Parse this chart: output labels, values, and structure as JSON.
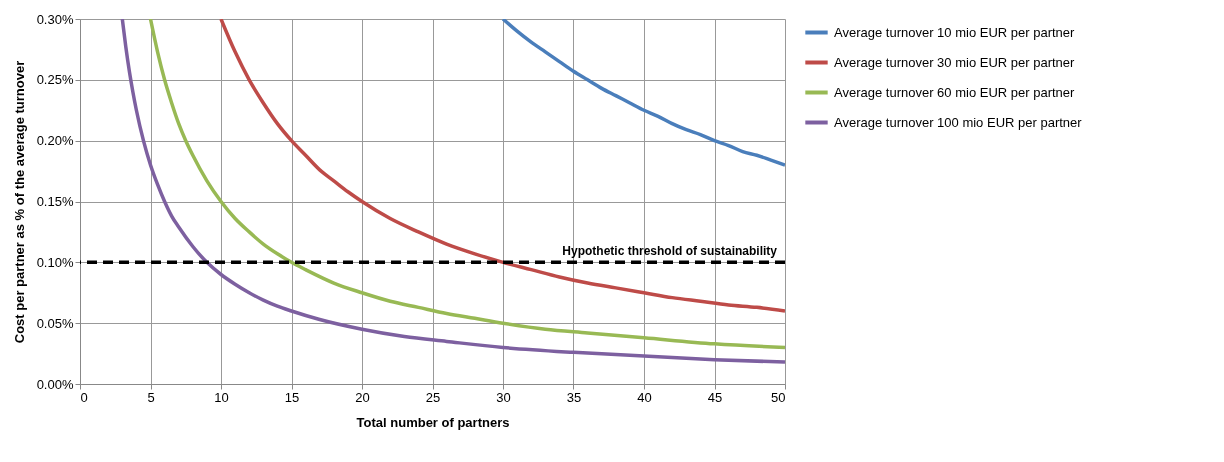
{
  "chart_data": {
    "type": "line",
    "xlabel": "Total number of partners",
    "ylabel": "Cost per partner as % of the average turnover",
    "xlim": [
      0,
      50
    ],
    "xticks": [
      0,
      5,
      10,
      15,
      20,
      25,
      30,
      35,
      40,
      45,
      50
    ],
    "ylim": [
      0,
      0.3
    ],
    "yticks": [
      {
        "value": 0,
        "label": "0.00%"
      },
      {
        "value": 0.05,
        "label": "0.05%"
      },
      {
        "value": 0.1,
        "label": "0.10%"
      },
      {
        "value": 0.15,
        "label": "0.15%"
      },
      {
        "value": 0.2,
        "label": "0.20%"
      },
      {
        "value": 0.25,
        "label": "0.25%"
      },
      {
        "value": 0.3,
        "label": "0.30%"
      }
    ],
    "grid": true,
    "legend": "right",
    "series": [
      {
        "name": "Average turnover 10 mio EUR per partner",
        "color": "#4a7ebb",
        "x": [
          30,
          31,
          32,
          33,
          34,
          35,
          36,
          37,
          38,
          39,
          40,
          41,
          42,
          43,
          44,
          45,
          46,
          47,
          48,
          49,
          50
        ],
        "values": [
          0.3,
          0.29,
          0.281,
          0.273,
          0.265,
          0.257,
          0.25,
          0.243,
          0.237,
          0.231,
          0.225,
          0.22,
          0.214,
          0.209,
          0.205,
          0.2,
          0.196,
          0.191,
          0.188,
          0.184,
          0.18
        ]
      },
      {
        "name": "Average turnover 30 mio EUR per partner",
        "color": "#be4b48",
        "x": [
          10,
          11,
          12,
          13,
          14,
          15,
          16,
          17,
          18,
          19,
          20,
          22,
          24,
          26,
          28,
          30,
          32,
          34,
          36,
          38,
          40,
          42,
          44,
          46,
          48,
          50
        ],
        "values": [
          0.3,
          0.273,
          0.25,
          0.231,
          0.214,
          0.2,
          0.188,
          0.176,
          0.167,
          0.158,
          0.15,
          0.136,
          0.125,
          0.115,
          0.107,
          0.1,
          0.094,
          0.088,
          0.083,
          0.079,
          0.075,
          0.071,
          0.068,
          0.065,
          0.063,
          0.06
        ]
      },
      {
        "name": "Average turnover 60 mio EUR per partner",
        "color": "#98b954",
        "x": [
          5,
          5.5,
          6,
          6.5,
          7,
          7.5,
          8,
          9,
          10,
          11,
          12,
          13,
          14,
          15,
          16,
          18,
          20,
          22,
          24,
          26,
          28,
          30,
          33,
          36,
          40,
          45,
          50
        ],
        "values": [
          0.3,
          0.273,
          0.25,
          0.231,
          0.214,
          0.2,
          0.188,
          0.167,
          0.15,
          0.136,
          0.125,
          0.115,
          0.107,
          0.1,
          0.094,
          0.083,
          0.075,
          0.068,
          0.063,
          0.058,
          0.054,
          0.05,
          0.045,
          0.042,
          0.038,
          0.033,
          0.03
        ]
      },
      {
        "name": "Average turnover 100 mio EUR per partner",
        "color": "#7d60a0",
        "x": [
          3,
          3.25,
          3.5,
          3.75,
          4,
          4.5,
          5,
          5.5,
          6,
          6.5,
          7,
          8,
          9,
          10,
          11,
          12,
          13,
          14,
          15,
          17,
          20,
          23,
          26,
          30,
          35,
          40,
          45,
          50
        ],
        "values": [
          0.3,
          0.277,
          0.257,
          0.24,
          0.225,
          0.2,
          0.18,
          0.164,
          0.15,
          0.138,
          0.129,
          0.113,
          0.1,
          0.09,
          0.082,
          0.075,
          0.069,
          0.064,
          0.06,
          0.053,
          0.045,
          0.039,
          0.035,
          0.03,
          0.026,
          0.023,
          0.02,
          0.018
        ]
      }
    ],
    "ref_lines": [
      {
        "axis": "y",
        "value": 0.1,
        "label": "Hypothetic threshold of sustainability",
        "color": "#000000",
        "line_style": "dashed"
      }
    ]
  }
}
